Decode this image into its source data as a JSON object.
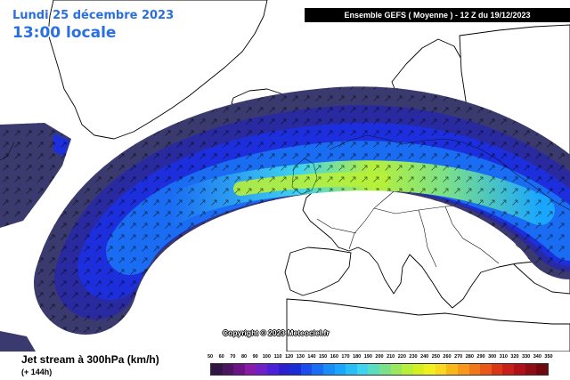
{
  "header": {
    "date": "Lundi 25 décembre 2023",
    "local_time": "13:00 locale",
    "run_info": "Ensemble GEFS  ( Moyenne )  -  12 Z du 19/12/2023"
  },
  "map": {
    "copyright": "Copyright © 2023 Meteociel.fr",
    "land_color": "#ffffff",
    "sea_color": "#ffffff",
    "border_color": "#000000",
    "jet_colors": [
      "#3b3a6e",
      "#2a2aa0",
      "#1d2fdc",
      "#1a6cf2",
      "#1aa6ff",
      "#3fd3f0",
      "#7ae08a",
      "#b7f03a"
    ],
    "peak_speed_kmh": 200
  },
  "footer": {
    "parameter": "Jet stream à 300hPa (km/h)",
    "forecast_step": "(+ 144h)"
  },
  "legend": {
    "labels": [
      "50",
      "60",
      "70",
      "80",
      "90",
      "100",
      "110",
      "120",
      "130",
      "140",
      "150",
      "160",
      "170",
      "180",
      "190",
      "200",
      "210",
      "220",
      "230",
      "240",
      "250",
      "260",
      "270",
      "280",
      "290",
      "300",
      "310",
      "320",
      "330",
      "340",
      "350"
    ],
    "colors": [
      "#321446",
      "#4a1660",
      "#6a1486",
      "#8a1aa8",
      "#7020c8",
      "#4a20d8",
      "#2a20d0",
      "#1a2cd8",
      "#1a4cee",
      "#1a6cf2",
      "#1a8cf8",
      "#1aa6ff",
      "#2abef8",
      "#3fd3f0",
      "#5adcc0",
      "#7ae08a",
      "#9ae860",
      "#b7f03a",
      "#d4f022",
      "#f0f020",
      "#f8d820",
      "#f8b81a",
      "#f8981a",
      "#f07818",
      "#e85818",
      "#d83818",
      "#c82018",
      "#b01018",
      "#900c14",
      "#700810"
    ]
  }
}
